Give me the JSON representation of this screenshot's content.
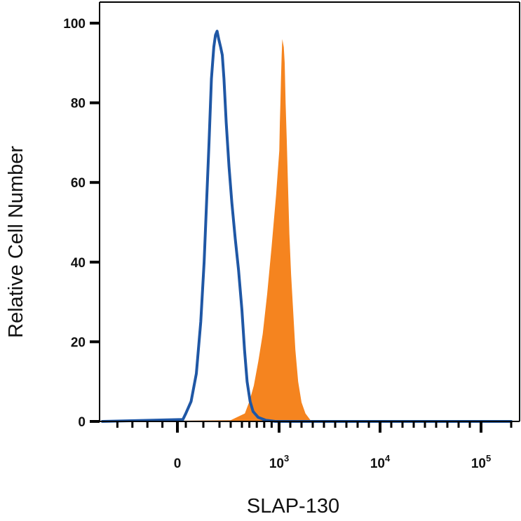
{
  "chart_data": {
    "type": "area",
    "xlabel": "SLAP-130",
    "ylabel": "Relative Cell Number",
    "x_scale": "biexponential",
    "xlim": [
      -500,
      200000
    ],
    "ylim": [
      0,
      100
    ],
    "y_ticks": [
      {
        "value": 0,
        "label": "0"
      },
      {
        "value": 20,
        "label": "20"
      },
      {
        "value": 40,
        "label": "40"
      },
      {
        "value": 60,
        "label": "60"
      },
      {
        "value": 80,
        "label": "80"
      },
      {
        "value": 100,
        "label": "100"
      }
    ],
    "x_ticks": [
      {
        "value": 0,
        "base": "0",
        "exp": ""
      },
      {
        "value": 1000,
        "base": "10",
        "exp": "3"
      },
      {
        "value": 10000,
        "base": "10",
        "exp": "4"
      },
      {
        "value": 100000,
        "base": "10",
        "exp": "5"
      }
    ],
    "grid": false,
    "legend": "none",
    "series": [
      {
        "style": "filled",
        "color": "#f5841f",
        "x": [
          -500,
          400,
          540,
          600,
          660,
          720,
          780,
          840,
          900,
          960,
          1020,
          1070,
          1120,
          1170,
          1230,
          1290,
          1350,
          1420,
          1500,
          1580,
          1680,
          1790,
          1920,
          2070,
          2250,
          2450,
          2700,
          3000,
          3350,
          3800,
          200000
        ],
        "values": [
          0,
          0.3,
          2,
          5,
          9,
          15,
          22,
          32,
          44,
          57,
          68,
          75,
          80,
          86,
          92,
          96,
          95,
          94,
          90,
          80,
          71,
          60,
          47,
          37,
          28,
          18,
          10,
          4.8,
          2,
          0.3,
          0
        ]
      },
      {
        "style": "outline",
        "color": "#1f57a5",
        "x": [
          -500,
          65,
          100,
          130,
          160,
          185,
          205,
          220,
          235,
          250,
          265,
          275,
          285,
          295,
          310,
          325,
          340,
          360,
          385,
          410,
          440,
          470,
          500,
          535,
          570,
          610,
          650,
          720,
          820,
          950,
          200000
        ],
        "values": [
          0,
          0.5,
          2,
          5,
          12,
          25,
          40,
          55,
          70,
          86,
          94,
          97,
          98,
          96,
          94,
          92,
          86,
          75,
          64,
          55,
          46,
          38,
          28,
          18,
          10,
          5,
          2.5,
          1,
          0.3,
          0,
          0
        ]
      }
    ]
  }
}
